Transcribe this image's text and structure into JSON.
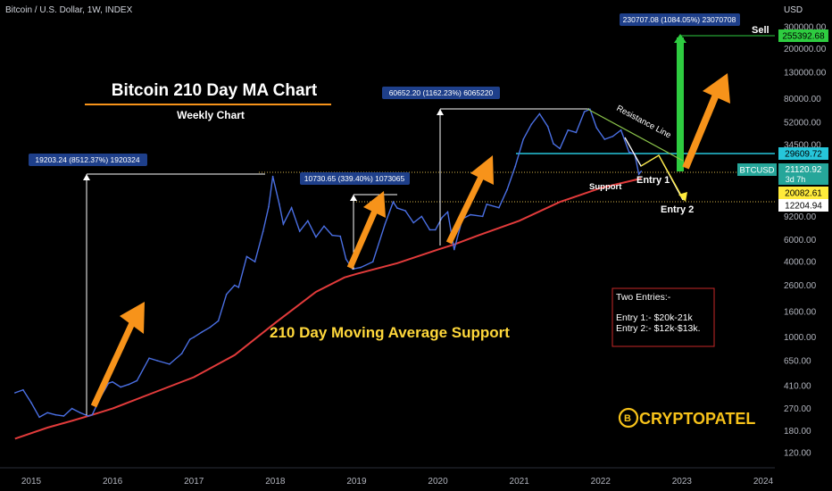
{
  "header": {
    "symbol_line": "Bitcoin / U.S. Dollar, 1W, INDEX"
  },
  "chart_data": {
    "type": "line",
    "title": "Bitcoin 210 Day MA Chart",
    "subtitle": "Weekly Chart",
    "y_scale": "log",
    "ylim": [
      100,
      300000
    ],
    "xlim": [
      2014.8,
      2024.1
    ],
    "currency_label": "USD",
    "y_ticks": [
      {
        "label": "300000.00",
        "value": 300000
      },
      {
        "label": "200000.00",
        "value": 200000
      },
      {
        "label": "130000.00",
        "value": 130000
      },
      {
        "label": "80000.00",
        "value": 80000
      },
      {
        "label": "52000.00",
        "value": 52000
      },
      {
        "label": "34500.00",
        "value": 34500
      },
      {
        "label": "9200.00",
        "value": 9200
      },
      {
        "label": "6000.00",
        "value": 6000
      },
      {
        "label": "4000.00",
        "value": 4000
      },
      {
        "label": "2600.00",
        "value": 2600
      },
      {
        "label": "1600.00",
        "value": 1600
      },
      {
        "label": "1000.00",
        "value": 1000
      },
      {
        "label": "650.00",
        "value": 650
      },
      {
        "label": "410.00",
        "value": 410
      },
      {
        "label": "270.00",
        "value": 270
      },
      {
        "label": "180.00",
        "value": 180
      },
      {
        "label": "120.00",
        "value": 120
      }
    ],
    "x_ticks": [
      {
        "label": "2015",
        "value": 2015
      },
      {
        "label": "2016",
        "value": 2016
      },
      {
        "label": "2017",
        "value": 2017
      },
      {
        "label": "2018",
        "value": 2018
      },
      {
        "label": "2019",
        "value": 2019
      },
      {
        "label": "2020",
        "value": 2020
      },
      {
        "label": "2021",
        "value": 2021
      },
      {
        "label": "2022",
        "value": 2022
      },
      {
        "label": "2023",
        "value": 2023
      },
      {
        "label": "2024",
        "value": 2024
      }
    ],
    "series": [
      {
        "name": "BTCUSD",
        "color": "#4a6fe3",
        "points": [
          [
            2014.8,
            360
          ],
          [
            2014.9,
            380
          ],
          [
            2015.0,
            300
          ],
          [
            2015.1,
            230
          ],
          [
            2015.2,
            250
          ],
          [
            2015.3,
            240
          ],
          [
            2015.4,
            235
          ],
          [
            2015.5,
            270
          ],
          [
            2015.6,
            250
          ],
          [
            2015.7,
            235
          ],
          [
            2015.75,
            240
          ],
          [
            2015.85,
            330
          ],
          [
            2015.95,
            430
          ],
          [
            2016.0,
            440
          ],
          [
            2016.1,
            400
          ],
          [
            2016.2,
            420
          ],
          [
            2016.3,
            450
          ],
          [
            2016.45,
            680
          ],
          [
            2016.55,
            650
          ],
          [
            2016.7,
            610
          ],
          [
            2016.85,
            740
          ],
          [
            2016.95,
            960
          ],
          [
            2017.0,
            1000
          ],
          [
            2017.1,
            1100
          ],
          [
            2017.2,
            1200
          ],
          [
            2017.3,
            1350
          ],
          [
            2017.4,
            2200
          ],
          [
            2017.5,
            2600
          ],
          [
            2017.55,
            2500
          ],
          [
            2017.65,
            4400
          ],
          [
            2017.75,
            4000
          ],
          [
            2017.85,
            7000
          ],
          [
            2017.92,
            11000
          ],
          [
            2017.97,
            19203
          ],
          [
            2018.05,
            11500
          ],
          [
            2018.1,
            8000
          ],
          [
            2018.2,
            10800
          ],
          [
            2018.3,
            7000
          ],
          [
            2018.4,
            8500
          ],
          [
            2018.5,
            6300
          ],
          [
            2018.6,
            7700
          ],
          [
            2018.7,
            6500
          ],
          [
            2018.8,
            6400
          ],
          [
            2018.87,
            4200
          ],
          [
            2018.95,
            3500
          ],
          [
            2019.05,
            3600
          ],
          [
            2019.2,
            4000
          ],
          [
            2019.35,
            8000
          ],
          [
            2019.45,
            12000
          ],
          [
            2019.5,
            10730
          ],
          [
            2019.6,
            10200
          ],
          [
            2019.7,
            8200
          ],
          [
            2019.8,
            9200
          ],
          [
            2019.9,
            7200
          ],
          [
            2019.97,
            7200
          ],
          [
            2020.05,
            9000
          ],
          [
            2020.12,
            10000
          ],
          [
            2020.2,
            5000
          ],
          [
            2020.3,
            8800
          ],
          [
            2020.4,
            9500
          ],
          [
            2020.55,
            9200
          ],
          [
            2020.6,
            11500
          ],
          [
            2020.75,
            10800
          ],
          [
            2020.85,
            15000
          ],
          [
            2020.95,
            23000
          ],
          [
            2021.05,
            38000
          ],
          [
            2021.15,
            50000
          ],
          [
            2021.25,
            60652
          ],
          [
            2021.35,
            48000
          ],
          [
            2021.42,
            35000
          ],
          [
            2021.5,
            32000
          ],
          [
            2021.6,
            45000
          ],
          [
            2021.7,
            43000
          ],
          [
            2021.8,
            63000
          ],
          [
            2021.87,
            66000
          ],
          [
            2021.95,
            47000
          ],
          [
            2022.05,
            38000
          ],
          [
            2022.15,
            40000
          ],
          [
            2022.25,
            45000
          ],
          [
            2022.35,
            30000
          ],
          [
            2022.42,
            29000
          ],
          [
            2022.47,
            20000
          ],
          [
            2022.5,
            21120
          ]
        ]
      },
      {
        "name": "210 Day MA",
        "color": "#e23b3b",
        "points": [
          [
            2014.8,
            155
          ],
          [
            2015.2,
            190
          ],
          [
            2015.5,
            215
          ],
          [
            2015.75,
            240
          ],
          [
            2016.0,
            270
          ],
          [
            2016.5,
            360
          ],
          [
            2017.0,
            480
          ],
          [
            2017.5,
            720
          ],
          [
            2018.0,
            1300
          ],
          [
            2018.5,
            2300
          ],
          [
            2018.85,
            3000
          ],
          [
            2019.0,
            3200
          ],
          [
            2019.5,
            3900
          ],
          [
            2020.0,
            5000
          ],
          [
            2020.2,
            5500
          ],
          [
            2020.5,
            6500
          ],
          [
            2021.0,
            8500
          ],
          [
            2021.5,
            12000
          ],
          [
            2022.0,
            15500
          ],
          [
            2022.5,
            18500
          ]
        ]
      }
    ],
    "annotations": [
      {
        "name": "measure-2017",
        "text": "19203.24 (8512.37%) 1920324"
      },
      {
        "name": "measure-2019",
        "text": "10730.65 (339.40%) 1073065"
      },
      {
        "name": "measure-2021",
        "text": "60652.20 (1162.23%) 6065220"
      },
      {
        "name": "measure-projection",
        "text": "230707.08 (1084.05%) 23070708"
      }
    ],
    "labels": {
      "ma_support": "210 Day Moving Average Support",
      "resistance": "Resistance Line",
      "support": "Support",
      "entry1": "Entry 1",
      "entry2": "Entry 2",
      "sell": "Sell"
    },
    "price_tags": [
      {
        "name": "tag-255392",
        "text": "255392.68",
        "bg": "#2ecc40",
        "fg": "#000000"
      },
      {
        "name": "tag-29609",
        "text": "29609.72",
        "bg": "#26c6da",
        "fg": "#000000"
      },
      {
        "name": "tag-btcusd",
        "text": "BTCUSD",
        "bg": "#26a69a",
        "fg": "#ffffff"
      },
      {
        "name": "tag-21120",
        "text": "21120.92",
        "bg": "#26a69a",
        "fg": "#ffffff"
      },
      {
        "name": "tag-3d7h",
        "text": "3d 7h",
        "bg": "#26a69a",
        "fg": "#ffffff"
      },
      {
        "name": "tag-20082",
        "text": "20082.61",
        "bg": "#ffeb3b",
        "fg": "#000000"
      },
      {
        "name": "tag-12204",
        "text": "12204.94",
        "bg": "#ffffff",
        "fg": "#000000"
      }
    ],
    "entries_box": {
      "title": "Two Entries:-",
      "line1": "Entry 1:- $20k-21k",
      "line2": "Entry 2:- $12k-$13k."
    },
    "brand": "CRYPTOPATEL",
    "colors": {
      "background": "#000000",
      "price": "#4a6fe3",
      "ma": "#e23b3b",
      "arrow": "#f7931a",
      "resistance": "#8bc34a",
      "measure_box": "#1e3f8a",
      "title_underline": "#f7931a",
      "ma_label": "#ffd83b",
      "green_sell": "#2ecc40",
      "entries_border": "#c62828"
    }
  }
}
